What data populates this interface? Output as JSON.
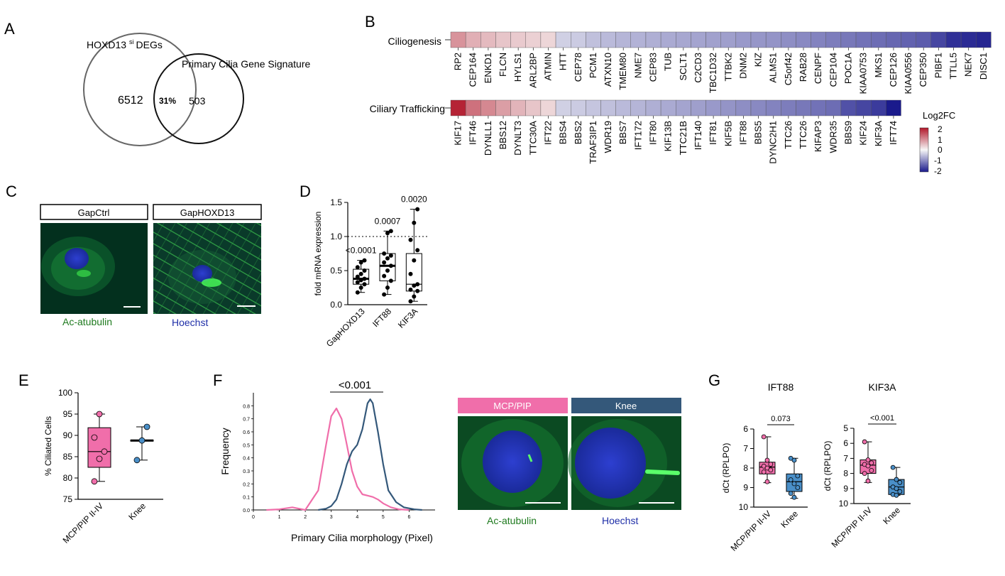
{
  "panels": {
    "A": "A",
    "B": "B",
    "C": "C",
    "D": "D",
    "E": "E",
    "F": "F",
    "G": "G"
  },
  "venn": {
    "left_label": "HOXD13",
    "left_sup": "si",
    "left_label_suffix": "DEGs",
    "right_label": "Primary Cilia Gene Signature",
    "left_only": "6512",
    "overlap": "31%",
    "right_only": "503"
  },
  "heatmap": {
    "rows": [
      {
        "label": "Ciliogenesis",
        "genes": [
          "RP2",
          "CEP164",
          "ENKD1",
          "FLCN",
          "HYLS1",
          "ARL2BP",
          "ATMIN",
          "HTT",
          "CEP78",
          "PCM1",
          "ATXN10",
          "TMEM80",
          "NME7",
          "CEP83",
          "TUB",
          "SCLT1",
          "C2CD3",
          "TBC1D32",
          "TTBK2",
          "DNM2",
          "KIZ",
          "ALMS1",
          "C5orf42",
          "RAB28",
          "CENPF",
          "CEP104",
          "POC1A",
          "KIAA0753",
          "MKS1",
          "CEP126",
          "KIAA0556",
          "CEP350",
          "PIBF1",
          "TTLL5",
          "NEK7",
          "DISC1"
        ],
        "values": [
          0.9,
          0.65,
          0.55,
          0.45,
          0.4,
          0.35,
          0.3,
          -0.35,
          -0.4,
          -0.5,
          -0.55,
          -0.6,
          -0.62,
          -0.65,
          -0.7,
          -0.72,
          -0.75,
          -0.78,
          -0.8,
          -0.85,
          -0.88,
          -0.9,
          -0.95,
          -1.0,
          -1.05,
          -1.1,
          -1.15,
          -1.2,
          -1.25,
          -1.3,
          -1.35,
          -1.4,
          -1.6,
          -1.8,
          -1.85,
          -1.9
        ]
      },
      {
        "label": "Ciliary Trafficking",
        "genes": [
          "KIF17",
          "IFT46",
          "DYNLL1",
          "BBS12",
          "DYNLT3",
          "TTC30A",
          "IFT22",
          "BBS4",
          "BBS2",
          "TRAF3IP1",
          "WDR19",
          "BBS7",
          "IFT172",
          "IFT80",
          "KIF13B",
          "TTC21B",
          "IFT140",
          "IFT81",
          "KIF5B",
          "IFT88",
          "BBS5",
          "DYNC2H1",
          "TTC26",
          "TTC26",
          "KIFAP3",
          "WDR35",
          "BBS9",
          "KIF24",
          "KIF3A",
          "IFT74"
        ],
        "values": [
          1.9,
          1.2,
          1.0,
          0.8,
          0.6,
          0.45,
          0.3,
          -0.35,
          -0.4,
          -0.45,
          -0.5,
          -0.55,
          -0.6,
          -0.65,
          -0.7,
          -0.75,
          -0.8,
          -0.85,
          -0.9,
          -0.95,
          -1.0,
          -1.05,
          -1.1,
          -1.15,
          -1.2,
          -1.25,
          -1.5,
          -1.6,
          -1.7,
          -2.0
        ]
      }
    ],
    "legend_title": "Log2FC",
    "legend_ticks": [
      "2",
      "1",
      "0",
      "-1",
      "-2"
    ],
    "colors": {
      "high": "#b2182b",
      "mid": "#f7f7f7",
      "low": "#1a1a8c"
    }
  },
  "panel_c": {
    "label_left": "GapCtrl",
    "label_right": "GapHOXD13",
    "stain_green": "Ac-atubulin",
    "stain_blue": "Hoechst"
  },
  "chart_data": [
    {
      "type": "box",
      "id": "D",
      "ylabel": "fold mRNA expression",
      "ylim": [
        0,
        1.5
      ],
      "ytick_labels": [
        "0.0",
        "0.5",
        "1.0",
        "1.5"
      ],
      "reference_line": 1.0,
      "categories": [
        "GapHOXD13",
        "IFT88",
        "KIF3A"
      ],
      "pvalues": [
        "<0.0001",
        "0.0007",
        "0.0020"
      ],
      "series": [
        {
          "min": 0.18,
          "q1": 0.3,
          "median": 0.38,
          "q3": 0.52,
          "max": 0.65,
          "points": [
            0.18,
            0.25,
            0.3,
            0.33,
            0.36,
            0.38,
            0.41,
            0.45,
            0.5,
            0.55,
            0.62,
            0.65
          ]
        },
        {
          "min": 0.15,
          "q1": 0.35,
          "median": 0.57,
          "q3": 0.75,
          "max": 1.08,
          "points": [
            0.15,
            0.25,
            0.35,
            0.42,
            0.5,
            0.57,
            0.62,
            0.68,
            0.72,
            0.75,
            1.05,
            1.08
          ]
        },
        {
          "min": 0.05,
          "q1": 0.2,
          "median": 0.3,
          "q3": 0.75,
          "max": 1.4,
          "points": [
            0.05,
            0.12,
            0.2,
            0.22,
            0.28,
            0.3,
            0.45,
            0.65,
            0.8,
            0.95,
            1.2,
            1.4
          ]
        }
      ]
    },
    {
      "type": "box",
      "id": "E",
      "ylabel": "% Ciliated Cells",
      "ylim": [
        75,
        100
      ],
      "ytick_labels": [
        "75",
        "80",
        "85",
        "90",
        "95",
        "100"
      ],
      "categories": [
        "MCP/PIP II-IV",
        "Knee"
      ],
      "colors": [
        "#f06eaa",
        "#4a8fc8"
      ],
      "series": [
        {
          "min": 79.2,
          "q1": 82.5,
          "median": 86.2,
          "q3": 91.8,
          "max": 95,
          "points": [
            79.2,
            84.5,
            86.2,
            89.5,
            95
          ]
        },
        {
          "min": 84.2,
          "q1": 88.7,
          "median": 88.8,
          "q3": 88.9,
          "max": 92,
          "points": [
            84.2,
            88.8,
            92
          ]
        }
      ]
    },
    {
      "type": "line",
      "id": "F",
      "title": "<0.001",
      "xlabel": "Primary Cilia morphology (Pixel)",
      "ylabel": "Frequency",
      "xlim": [
        0,
        7
      ],
      "ylim": [
        0,
        0.9
      ],
      "xtick_labels": [
        "0",
        "1",
        "2",
        "3",
        "4",
        "5",
        "6"
      ],
      "ytick_labels": [
        "0.0",
        "0.1",
        "0.2",
        "0.3",
        "0.4",
        "0.5",
        "0.6",
        "0.7",
        "0.8"
      ],
      "series": [
        {
          "color": "#f06eaa",
          "x": [
            0.5,
            1,
            1.5,
            2,
            2.5,
            2.8,
            3.0,
            3.2,
            3.4,
            3.6,
            3.8,
            4.0,
            4.2,
            4.4,
            4.6,
            4.8,
            5.0,
            5.3,
            5.6,
            6.0
          ],
          "y": [
            0,
            0.005,
            0.02,
            0.0,
            0.15,
            0.5,
            0.72,
            0.78,
            0.7,
            0.5,
            0.3,
            0.18,
            0.12,
            0.11,
            0.1,
            0.08,
            0.05,
            0.02,
            0.005,
            0
          ]
        },
        {
          "color": "#34587a",
          "x": [
            2.5,
            2.8,
            3.0,
            3.2,
            3.4,
            3.6,
            3.8,
            4.0,
            4.2,
            4.4,
            4.5,
            4.6,
            4.8,
            5.0,
            5.2,
            5.5,
            5.8,
            6.2,
            6.5
          ],
          "y": [
            0,
            0.01,
            0.03,
            0.08,
            0.2,
            0.35,
            0.45,
            0.5,
            0.62,
            0.82,
            0.85,
            0.82,
            0.6,
            0.35,
            0.15,
            0.06,
            0.02,
            0.005,
            0
          ]
        }
      ]
    },
    {
      "type": "box",
      "id": "G1",
      "title": "IFT88",
      "ylabel": "dCt (RPLPO)",
      "ylim": [
        6,
        10
      ],
      "inverted": true,
      "ytick_labels": [
        "6",
        "7",
        "8",
        "9",
        "10"
      ],
      "pvalue": "0.073",
      "categories": [
        "MCP/PIP II-IV",
        "Knee"
      ],
      "colors": [
        "#f06eaa",
        "#4a8fc8"
      ],
      "series": [
        {
          "min": 6.4,
          "q1": 7.7,
          "median": 7.95,
          "q3": 8.3,
          "max": 8.75,
          "points": [
            6.4,
            7.6,
            7.8,
            7.9,
            8.0,
            8.1,
            8.2,
            8.7
          ]
        },
        {
          "min": 7.5,
          "q1": 8.3,
          "median": 8.7,
          "q3": 9.2,
          "max": 9.55,
          "points": [
            7.5,
            7.6,
            8.4,
            8.6,
            8.8,
            9.0,
            9.3,
            9.5
          ]
        }
      ]
    },
    {
      "type": "box",
      "id": "G2",
      "title": "KIF3A",
      "ylabel": "dCt (RPLPO)",
      "ylim": [
        5,
        10
      ],
      "inverted": true,
      "ytick_labels": [
        "5",
        "6",
        "7",
        "8",
        "9",
        "10"
      ],
      "pvalue": "<0.001",
      "categories": [
        "MCP/PIP II-IV",
        "Knee"
      ],
      "colors": [
        "#f06eaa",
        "#4a8fc8"
      ],
      "series": [
        {
          "min": 5.9,
          "q1": 7.1,
          "median": 7.45,
          "q3": 8.0,
          "max": 8.6,
          "points": [
            5.9,
            7.1,
            7.3,
            7.4,
            7.5,
            7.8,
            8.0,
            8.5
          ]
        },
        {
          "min": 7.6,
          "q1": 8.4,
          "median": 8.9,
          "q3": 9.4,
          "max": 9.45,
          "points": [
            7.6,
            8.4,
            8.6,
            8.9,
            9.0,
            9.2,
            9.4,
            9.45
          ]
        }
      ]
    }
  ],
  "panel_f_images": {
    "label_left": "MCP/PIP",
    "label_right": "Knee",
    "stain_green": "Ac-atubulin",
    "stain_blue": "Hoechst"
  },
  "colors": {
    "pink": "#f06eaa",
    "blue": "#4a8fc8",
    "navy": "#34587a",
    "green_text": "#1e7a1e",
    "blue_text": "#1f2fa8"
  }
}
